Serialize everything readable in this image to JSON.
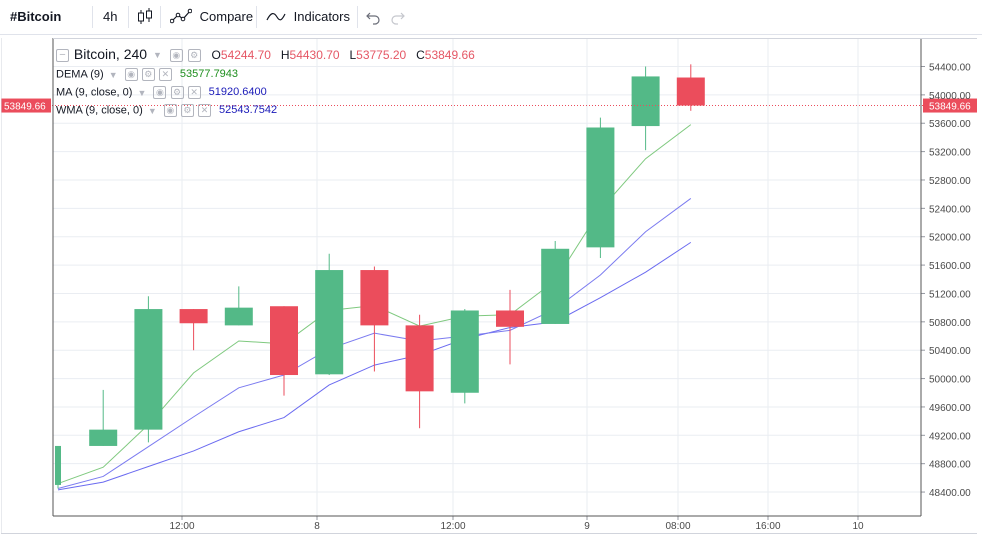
{
  "toolbar": {
    "symbol": "#Bitcoin",
    "interval": "4h",
    "candle_icon": "candlestick-icon",
    "compare_icon": "compare-icon",
    "compare_label": "Compare",
    "indicators_icon": "indicators-icon",
    "indicators_label": "Indicators",
    "undo_icon": "undo-icon",
    "redo_icon": "redo-icon"
  },
  "legend": {
    "title": "Bitcoin, 240",
    "ohlc": [
      {
        "label": "O",
        "value": "54244.70"
      },
      {
        "label": "H",
        "value": "54430.70"
      },
      {
        "label": "L",
        "value": "53775.20"
      },
      {
        "label": "C",
        "value": "53849.66"
      }
    ],
    "indicators": [
      {
        "name": "DEMA (9)",
        "value": "53577.7943",
        "color": "#1e8e1e"
      },
      {
        "name": "MA (9, close, 0)",
        "value": "51920.6400",
        "color": "#1a1ab8"
      },
      {
        "name": "WMA (9, close, 0)",
        "value": "52543.7542",
        "color": "#1a1ab8"
      }
    ]
  },
  "colors": {
    "up": "#53b987",
    "down": "#eb4d5c",
    "dema": "#7fc97f",
    "ma": "#6b6bf0",
    "wma": "#7b7bf0",
    "last_price": "#eb4d5c",
    "grid": "#eaedf2",
    "axis_text": "#4a4a4a"
  },
  "chart_data": {
    "type": "candlestick",
    "symbol": "Bitcoin",
    "interval": "240",
    "last_price": "53849.66",
    "y_ticks": [
      "48400.00",
      "48800.00",
      "49200.00",
      "49600.00",
      "50000.00",
      "50400.00",
      "50800.00",
      "51200.00",
      "51600.00",
      "52000.00",
      "52400.00",
      "52800.00",
      "53200.00",
      "53600.00",
      "54000.00",
      "54400.00"
    ],
    "x_ticks": [
      "12:00",
      "8",
      "12:00",
      "9",
      "08:00",
      "16:00",
      "10"
    ],
    "candles": [
      {
        "o": 48500,
        "h": 49050,
        "l": 48450,
        "c": 49050
      },
      {
        "o": 49050,
        "h": 49840,
        "l": 49050,
        "c": 49280
      },
      {
        "o": 49280,
        "h": 51160,
        "l": 49100,
        "c": 50980
      },
      {
        "o": 50980,
        "h": 50980,
        "l": 50400,
        "c": 50780
      },
      {
        "o": 50750,
        "h": 51300,
        "l": 50750,
        "c": 51000
      },
      {
        "o": 51020,
        "h": 51020,
        "l": 49760,
        "c": 50050
      },
      {
        "o": 50060,
        "h": 51760,
        "l": 50050,
        "c": 51530
      },
      {
        "o": 51530,
        "h": 51580,
        "l": 50100,
        "c": 50750
      },
      {
        "o": 50750,
        "h": 50900,
        "l": 49300,
        "c": 49820
      },
      {
        "o": 49800,
        "h": 50980,
        "l": 49650,
        "c": 50960
      },
      {
        "o": 50960,
        "h": 51250,
        "l": 50200,
        "c": 50730
      },
      {
        "o": 50770,
        "h": 51940,
        "l": 50770,
        "c": 51830
      },
      {
        "o": 51850,
        "h": 53680,
        "l": 51700,
        "c": 53540
      },
      {
        "o": 53560,
        "h": 54400,
        "l": 53220,
        "c": 54260
      },
      {
        "o": 54244.7,
        "h": 54430.7,
        "l": 53775.2,
        "c": 53849.66
      }
    ],
    "series": [
      {
        "name": "DEMA (9)",
        "values": [
          48520,
          48750,
          49350,
          50080,
          50530,
          50490,
          50960,
          51030,
          50740,
          50880,
          50900,
          51380,
          52380,
          53100,
          53580
        ]
      },
      {
        "name": "MA (9, close, 0)",
        "values": [
          48430,
          48540,
          48760,
          48980,
          49250,
          49450,
          49910,
          50190,
          50330,
          50560,
          50720,
          50800,
          51140,
          51500,
          51920
        ]
      },
      {
        "name": "WMA (9, close, 0)",
        "values": [
          48450,
          48620,
          49040,
          49460,
          49870,
          50050,
          50420,
          50640,
          50530,
          50600,
          50680,
          50980,
          51460,
          52070,
          52540
        ]
      }
    ]
  }
}
